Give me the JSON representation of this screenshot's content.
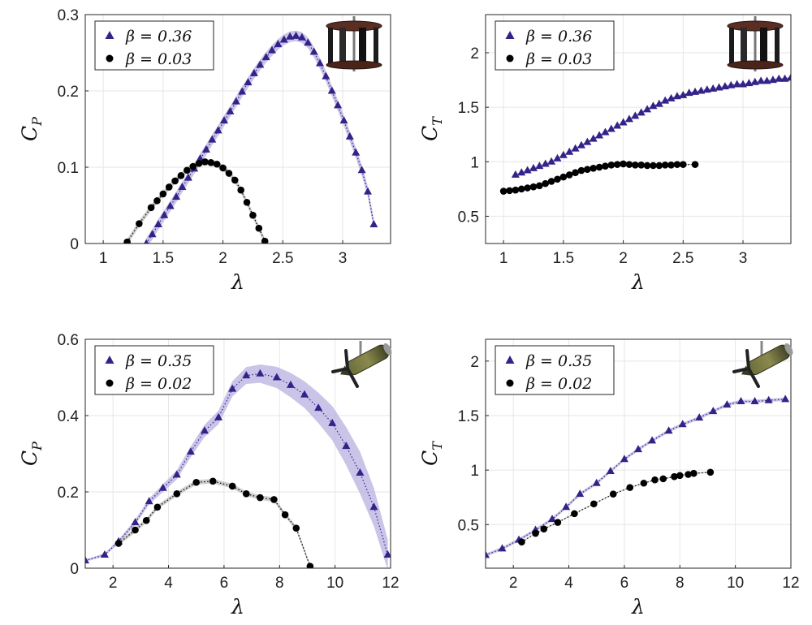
{
  "colors": {
    "series_a": "#332288",
    "series_b": "#000000",
    "band_a": "#b8b0e0",
    "band_b": "#bdbdbd"
  },
  "chart_data": [
    {
      "type": "scatter",
      "id": "cp-top",
      "xlabel": "λ",
      "ylabel": "C",
      "ylabel_sub": "P",
      "xlim": [
        0.85,
        3.4
      ],
      "ylim": [
        0,
        0.3
      ],
      "xticks": [
        1,
        1.5,
        2,
        2.5,
        3
      ],
      "xtick_labels": [
        "1",
        "1.5",
        "2",
        "2.5",
        "3"
      ],
      "yticks": [
        0,
        0.1,
        0.2,
        0.3
      ],
      "ytick_labels": [
        "0",
        "0.1",
        "0.2",
        "0.3"
      ],
      "grid": true,
      "legend_position": "top-left",
      "inset_icon": "cross-flow-turbine-icon",
      "series": [
        {
          "name": "β = 0.36",
          "marker": "triangle",
          "color": "#332288",
          "band": 0.007,
          "x": [
            1.36,
            1.41,
            1.46,
            1.51,
            1.56,
            1.61,
            1.66,
            1.71,
            1.76,
            1.81,
            1.86,
            1.91,
            1.96,
            2.01,
            2.06,
            2.11,
            2.16,
            2.21,
            2.26,
            2.31,
            2.36,
            2.41,
            2.46,
            2.51,
            2.56,
            2.61,
            2.66,
            2.71,
            2.76,
            2.81,
            2.86,
            2.91,
            2.96,
            3.01,
            3.06,
            3.11,
            3.16,
            3.21,
            3.26
          ],
          "y": [
            0.0,
            0.012,
            0.025,
            0.037,
            0.049,
            0.061,
            0.074,
            0.086,
            0.098,
            0.111,
            0.123,
            0.136,
            0.148,
            0.161,
            0.173,
            0.186,
            0.199,
            0.211,
            0.223,
            0.234,
            0.244,
            0.253,
            0.261,
            0.267,
            0.271,
            0.272,
            0.27,
            0.263,
            0.251,
            0.236,
            0.219,
            0.2,
            0.181,
            0.161,
            0.14,
            0.119,
            0.096,
            0.068,
            0.025
          ]
        },
        {
          "name": "β = 0.03",
          "marker": "circle",
          "color": "#000000",
          "band": 0.004,
          "x": [
            1.2,
            1.3,
            1.4,
            1.45,
            1.5,
            1.55,
            1.6,
            1.65,
            1.7,
            1.75,
            1.8,
            1.85,
            1.9,
            1.95,
            2.0,
            2.05,
            2.1,
            2.15,
            2.2,
            2.25,
            2.3,
            2.35
          ],
          "y": [
            0.002,
            0.026,
            0.047,
            0.056,
            0.065,
            0.074,
            0.082,
            0.089,
            0.096,
            0.101,
            0.105,
            0.107,
            0.106,
            0.104,
            0.099,
            0.092,
            0.083,
            0.07,
            0.054,
            0.037,
            0.02,
            0.003
          ]
        }
      ]
    },
    {
      "type": "scatter",
      "id": "ct-top",
      "xlabel": "λ",
      "ylabel": "C",
      "ylabel_sub": "T",
      "xlim": [
        0.85,
        3.4
      ],
      "ylim": [
        0.25,
        2.35
      ],
      "xticks": [
        1,
        1.5,
        2,
        2.5,
        3
      ],
      "xtick_labels": [
        "1",
        "1.5",
        "2",
        "2.5",
        "3"
      ],
      "yticks": [
        0.5,
        1,
        1.5,
        2
      ],
      "ytick_labels": [
        "0.5",
        "1",
        "1.5",
        "2"
      ],
      "grid": true,
      "legend_position": "top-left",
      "inset_icon": "cross-flow-turbine-icon",
      "series": [
        {
          "name": "β = 0.36",
          "marker": "triangle",
          "color": "#332288",
          "band": 0.01,
          "x": [
            1.1,
            1.15,
            1.2,
            1.25,
            1.3,
            1.35,
            1.4,
            1.45,
            1.5,
            1.55,
            1.6,
            1.65,
            1.7,
            1.75,
            1.8,
            1.85,
            1.9,
            1.95,
            2.0,
            2.05,
            2.1,
            2.15,
            2.2,
            2.25,
            2.3,
            2.35,
            2.4,
            2.45,
            2.5,
            2.55,
            2.6,
            2.65,
            2.7,
            2.75,
            2.8,
            2.85,
            2.9,
            2.95,
            3.0,
            3.05,
            3.1,
            3.15,
            3.2,
            3.25,
            3.3,
            3.35,
            3.4
          ],
          "y": [
            0.88,
            0.9,
            0.92,
            0.94,
            0.96,
            0.98,
            1.0,
            1.03,
            1.06,
            1.09,
            1.12,
            1.15,
            1.18,
            1.21,
            1.24,
            1.27,
            1.3,
            1.33,
            1.36,
            1.39,
            1.42,
            1.45,
            1.48,
            1.51,
            1.53,
            1.56,
            1.58,
            1.6,
            1.61,
            1.63,
            1.64,
            1.65,
            1.66,
            1.67,
            1.68,
            1.69,
            1.7,
            1.71,
            1.71,
            1.72,
            1.73,
            1.74,
            1.74,
            1.75,
            1.76,
            1.76,
            1.77
          ]
        },
        {
          "name": "β = 0.03",
          "marker": "circle",
          "color": "#000000",
          "band": 0.005,
          "x": [
            1.0,
            1.05,
            1.1,
            1.15,
            1.2,
            1.25,
            1.3,
            1.35,
            1.4,
            1.45,
            1.5,
            1.55,
            1.6,
            1.65,
            1.7,
            1.75,
            1.8,
            1.85,
            1.9,
            1.95,
            2.0,
            2.05,
            2.1,
            2.15,
            2.2,
            2.25,
            2.3,
            2.35,
            2.4,
            2.45,
            2.5,
            2.6
          ],
          "y": [
            0.73,
            0.735,
            0.74,
            0.75,
            0.76,
            0.77,
            0.78,
            0.8,
            0.82,
            0.84,
            0.86,
            0.88,
            0.9,
            0.92,
            0.93,
            0.94,
            0.95,
            0.96,
            0.97,
            0.975,
            0.98,
            0.975,
            0.97,
            0.97,
            0.965,
            0.965,
            0.965,
            0.97,
            0.97,
            0.975,
            0.975,
            0.975
          ]
        }
      ]
    },
    {
      "type": "scatter",
      "id": "cp-bottom",
      "xlabel": "λ",
      "ylabel": "C",
      "ylabel_sub": "P",
      "xlim": [
        1,
        12
      ],
      "ylim": [
        0,
        0.6
      ],
      "xticks": [
        2,
        4,
        6,
        8,
        10,
        12
      ],
      "xtick_labels": [
        "2",
        "4",
        "6",
        "8",
        "10",
        "12"
      ],
      "yticks": [
        0,
        0.2,
        0.4,
        0.6
      ],
      "ytick_labels": [
        "0",
        "0.2",
        "0.4",
        "0.6"
      ],
      "grid": true,
      "legend_position": "top-left",
      "inset_icon": "axial-flow-turbine-icon",
      "series": [
        {
          "name": "β = 0.35",
          "marker": "triangle",
          "color": "#332288",
          "x": [
            1.0,
            1.7,
            2.2,
            2.8,
            3.3,
            3.8,
            4.3,
            4.8,
            5.3,
            5.8,
            6.3,
            6.8,
            7.3,
            7.9,
            8.4,
            8.9,
            9.4,
            9.9,
            10.4,
            10.9,
            11.4,
            11.9
          ],
          "y": [
            0.02,
            0.035,
            0.07,
            0.12,
            0.175,
            0.21,
            0.245,
            0.305,
            0.36,
            0.395,
            0.47,
            0.505,
            0.51,
            0.5,
            0.48,
            0.455,
            0.42,
            0.38,
            0.32,
            0.25,
            0.16,
            0.035
          ],
          "band": [
            0.003,
            0.004,
            0.005,
            0.007,
            0.008,
            0.01,
            0.012,
            0.014,
            0.016,
            0.018,
            0.02,
            0.022,
            0.024,
            0.028,
            0.032,
            0.035,
            0.04,
            0.045,
            0.05,
            0.055,
            0.05,
            0.04
          ]
        },
        {
          "name": "β = 0.02",
          "marker": "circle",
          "color": "#000000",
          "band": 0.006,
          "x": [
            2.2,
            2.8,
            3.2,
            3.6,
            4.3,
            5.0,
            5.6,
            6.3,
            6.8,
            7.3,
            7.8,
            8.2,
            8.6,
            9.1
          ],
          "y": [
            0.065,
            0.1,
            0.125,
            0.16,
            0.195,
            0.225,
            0.228,
            0.215,
            0.195,
            0.185,
            0.18,
            0.14,
            0.105,
            0.005
          ]
        }
      ]
    },
    {
      "type": "scatter",
      "id": "ct-bottom",
      "xlabel": "λ",
      "ylabel": "C",
      "ylabel_sub": "T",
      "xlim": [
        1,
        12
      ],
      "ylim": [
        0.1,
        2.2
      ],
      "xticks": [
        2,
        4,
        6,
        8,
        10,
        12
      ],
      "xtick_labels": [
        "2",
        "4",
        "6",
        "8",
        "10",
        "12"
      ],
      "yticks": [
        0.5,
        1,
        1.5,
        2
      ],
      "ytick_labels": [
        "0.5",
        "1",
        "1.5",
        "2"
      ],
      "grid": true,
      "legend_position": "top-left",
      "inset_icon": "axial-flow-turbine-icon",
      "series": [
        {
          "name": "β = 0.35",
          "marker": "triangle",
          "color": "#332288",
          "band": 0.015,
          "x": [
            1.0,
            1.6,
            2.2,
            2.8,
            3.4,
            3.9,
            4.4,
            5.0,
            5.5,
            6.0,
            6.5,
            7.0,
            7.6,
            8.1,
            8.7,
            9.2,
            9.7,
            10.2,
            10.7,
            11.2,
            11.8
          ],
          "y": [
            0.22,
            0.28,
            0.36,
            0.45,
            0.55,
            0.66,
            0.78,
            0.88,
            0.99,
            1.1,
            1.19,
            1.27,
            1.36,
            1.42,
            1.48,
            1.54,
            1.6,
            1.63,
            1.63,
            1.64,
            1.65
          ]
        },
        {
          "name": "β = 0.02",
          "marker": "circle",
          "color": "#000000",
          "band": 0.006,
          "x": [
            2.3,
            2.8,
            3.1,
            3.6,
            4.2,
            4.9,
            5.6,
            6.2,
            6.7,
            7.1,
            7.4,
            7.8,
            8.0,
            8.3,
            8.5,
            9.1
          ],
          "y": [
            0.34,
            0.42,
            0.46,
            0.52,
            0.6,
            0.69,
            0.78,
            0.84,
            0.88,
            0.91,
            0.92,
            0.94,
            0.95,
            0.96,
            0.97,
            0.98
          ]
        }
      ]
    }
  ]
}
